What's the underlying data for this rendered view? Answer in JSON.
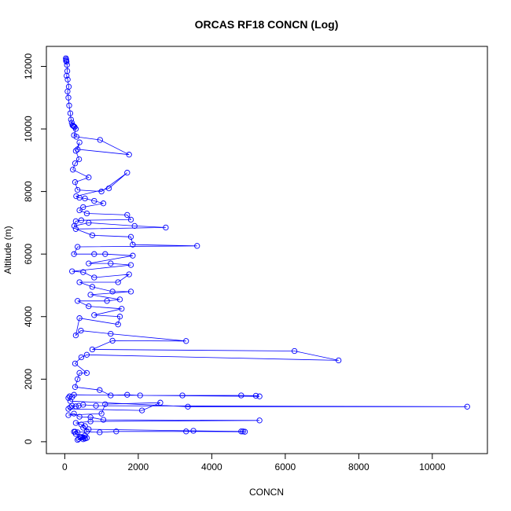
{
  "chart_data": {
    "type": "scatter",
    "title": "ORCAS RF18 CONCN (Log)",
    "xlabel": "CONCN",
    "ylabel": "Altitude (m)",
    "xlim": [
      -500,
      11500
    ],
    "ylim": [
      -380,
      12640
    ],
    "xticks": [
      0,
      2000,
      4000,
      6000,
      8000,
      10000
    ],
    "xtick_labels": [
      "0",
      "2000",
      "4000",
      "6000",
      "8000",
      "10000"
    ],
    "yticks": [
      0,
      2000,
      4000,
      6000,
      8000,
      10000,
      12000
    ],
    "ytick_labels": [
      "0",
      "2000",
      "4000",
      "6000",
      "8000",
      "10000",
      "12000"
    ],
    "grid": false,
    "legend": "none",
    "marker": "open-circle",
    "connected": true,
    "color": "#0000ff",
    "points": [
      [
        30,
        12260
      ],
      [
        40,
        12220
      ],
      [
        35,
        12180
      ],
      [
        50,
        12150
      ],
      [
        60,
        12050
      ],
      [
        70,
        11850
      ],
      [
        50,
        11700
      ],
      [
        80,
        11580
      ],
      [
        110,
        11350
      ],
      [
        75,
        11200
      ],
      [
        100,
        11000
      ],
      [
        120,
        10750
      ],
      [
        150,
        10500
      ],
      [
        170,
        10300
      ],
      [
        190,
        10200
      ],
      [
        210,
        10120
      ],
      [
        230,
        10100
      ],
      [
        250,
        10080
      ],
      [
        270,
        10060
      ],
      [
        300,
        10000
      ],
      [
        250,
        9800
      ],
      [
        320,
        9750
      ],
      [
        960,
        9650
      ],
      [
        1750,
        9180
      ],
      [
        350,
        9350
      ],
      [
        400,
        9570
      ],
      [
        300,
        9300
      ],
      [
        390,
        9030
      ],
      [
        280,
        8900
      ],
      [
        220,
        8700
      ],
      [
        650,
        8450
      ],
      [
        280,
        8300
      ],
      [
        350,
        8050
      ],
      [
        1000,
        8000
      ],
      [
        1700,
        8600
      ],
      [
        1200,
        8100
      ],
      [
        310,
        7850
      ],
      [
        400,
        7800
      ],
      [
        550,
        7780
      ],
      [
        800,
        7700
      ],
      [
        1050,
        7620
      ],
      [
        500,
        7500
      ],
      [
        400,
        7400
      ],
      [
        600,
        7300
      ],
      [
        1700,
        7250
      ],
      [
        1800,
        7100
      ],
      [
        450,
        7080
      ],
      [
        300,
        7050
      ],
      [
        260,
        6900
      ],
      [
        650,
        7000
      ],
      [
        1900,
        6900
      ],
      [
        2750,
        6850
      ],
      [
        300,
        6800
      ],
      [
        750,
        6600
      ],
      [
        1800,
        6550
      ],
      [
        1850,
        6300
      ],
      [
        3600,
        6260
      ],
      [
        350,
        6230
      ],
      [
        250,
        6000
      ],
      [
        800,
        6000
      ],
      [
        1100,
        6000
      ],
      [
        1850,
        5950
      ],
      [
        650,
        5700
      ],
      [
        1250,
        5700
      ],
      [
        1800,
        5650
      ],
      [
        200,
        5450
      ],
      [
        500,
        5420
      ],
      [
        800,
        5250
      ],
      [
        1750,
        5350
      ],
      [
        1450,
        5100
      ],
      [
        400,
        5100
      ],
      [
        750,
        4950
      ],
      [
        1300,
        4800
      ],
      [
        1800,
        4800
      ],
      [
        700,
        4700
      ],
      [
        1500,
        4550
      ],
      [
        1150,
        4500
      ],
      [
        350,
        4500
      ],
      [
        650,
        4330
      ],
      [
        1550,
        4250
      ],
      [
        800,
        4050
      ],
      [
        1500,
        4000
      ],
      [
        1450,
        3750
      ],
      [
        400,
        3950
      ],
      [
        300,
        3400
      ],
      [
        440,
        3550
      ],
      [
        1250,
        3450
      ],
      [
        3300,
        3220
      ],
      [
        1300,
        3230
      ],
      [
        750,
        2950
      ],
      [
        6250,
        2900
      ],
      [
        7450,
        2600
      ],
      [
        600,
        2780
      ],
      [
        450,
        2700
      ],
      [
        280,
        2500
      ],
      [
        600,
        2200
      ],
      [
        400,
        2200
      ],
      [
        350,
        2000
      ],
      [
        280,
        1750
      ],
      [
        950,
        1650
      ],
      [
        1250,
        1480
      ],
      [
        1700,
        1500
      ],
      [
        2050,
        1480
      ],
      [
        3200,
        1480
      ],
      [
        4800,
        1480
      ],
      [
        5200,
        1470
      ],
      [
        5300,
        1450
      ],
      [
        250,
        1500
      ],
      [
        200,
        1430
      ],
      [
        130,
        1450
      ],
      [
        100,
        1400
      ],
      [
        150,
        1300
      ],
      [
        3350,
        1120
      ],
      [
        10950,
        1120
      ],
      [
        850,
        1150
      ],
      [
        500,
        1180
      ],
      [
        380,
        1150
      ],
      [
        300,
        1130
      ],
      [
        200,
        1150
      ],
      [
        150,
        1100
      ],
      [
        100,
        1050
      ],
      [
        2100,
        1000
      ],
      [
        2600,
        1250
      ],
      [
        1100,
        1200
      ],
      [
        1000,
        900
      ],
      [
        100,
        850
      ],
      [
        250,
        900
      ],
      [
        400,
        800
      ],
      [
        700,
        780
      ],
      [
        1050,
        700
      ],
      [
        5300,
        680
      ],
      [
        700,
        650
      ],
      [
        300,
        600
      ],
      [
        450,
        550
      ],
      [
        550,
        500
      ],
      [
        500,
        450
      ],
      [
        650,
        400
      ],
      [
        3500,
        350
      ],
      [
        4800,
        330
      ],
      [
        4850,
        330
      ],
      [
        4900,
        320
      ],
      [
        3300,
        330
      ],
      [
        1400,
        330
      ],
      [
        950,
        300
      ],
      [
        600,
        320
      ],
      [
        350,
        300
      ],
      [
        280,
        320
      ],
      [
        250,
        320
      ],
      [
        300,
        250
      ],
      [
        550,
        200
      ],
      [
        450,
        150
      ],
      [
        500,
        140
      ],
      [
        420,
        130
      ],
      [
        550,
        110
      ],
      [
        600,
        120
      ],
      [
        380,
        90
      ],
      [
        350,
        60
      ],
      [
        450,
        140
      ],
      [
        500,
        80
      ],
      [
        550,
        100
      ]
    ]
  }
}
